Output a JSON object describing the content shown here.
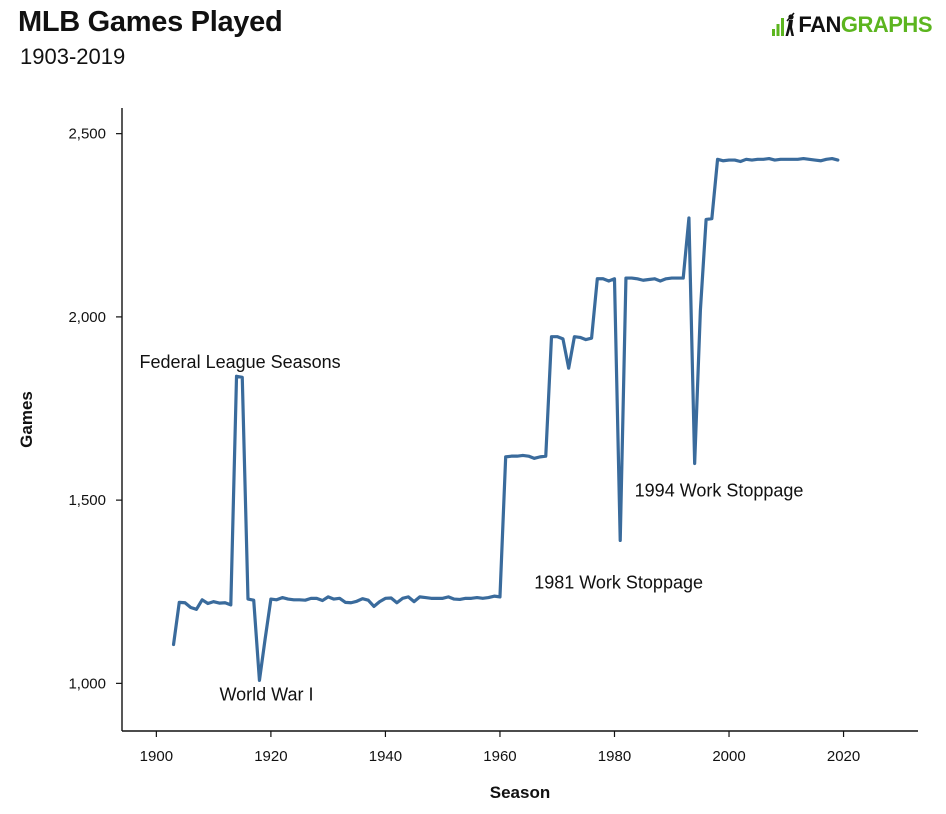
{
  "title": "MLB Games Played",
  "subtitle": "1903-2019",
  "logo": {
    "part1": "FAN",
    "part2": "GRAPHS",
    "brand_color": "#5cb51f"
  },
  "colors": {
    "line": "#3a6b9c",
    "axis": "#111111",
    "text": "#111111"
  },
  "chart_data": {
    "type": "line",
    "xlabel": "Season",
    "ylabel": "Games",
    "xlim": [
      1894,
      2033
    ],
    "ylim": [
      870,
      2570
    ],
    "x_ticks": [
      1900,
      1920,
      1940,
      1960,
      1980,
      2000,
      2020
    ],
    "x_tick_labels": [
      "1900",
      "1920",
      "1940",
      "1960",
      "1980",
      "2000",
      "2020"
    ],
    "y_ticks": [
      1000,
      1500,
      2000,
      2500
    ],
    "y_tick_labels": [
      "1,000",
      "1,500",
      "2,000",
      "2,500"
    ],
    "grid": false,
    "series": [
      {
        "x": [
          1903,
          1904,
          1905,
          1906,
          1907,
          1908,
          1909,
          1910,
          1911,
          1912,
          1913,
          1914,
          1915,
          1916,
          1917,
          1918,
          1919,
          1920,
          1921,
          1922,
          1923,
          1924,
          1925,
          1926,
          1927,
          1928,
          1929,
          1930,
          1931,
          1932,
          1933,
          1934,
          1935,
          1936,
          1937,
          1938,
          1939,
          1940,
          1941,
          1942,
          1943,
          1944,
          1945,
          1946,
          1947,
          1948,
          1949,
          1950,
          1951,
          1952,
          1953,
          1954,
          1955,
          1956,
          1957,
          1958,
          1959,
          1960,
          1961,
          1962,
          1963,
          1964,
          1965,
          1966,
          1967,
          1968,
          1969,
          1970,
          1971,
          1972,
          1973,
          1974,
          1975,
          1976,
          1977,
          1978,
          1979,
          1980,
          1981,
          1982,
          1983,
          1984,
          1985,
          1986,
          1987,
          1988,
          1989,
          1990,
          1991,
          1992,
          1993,
          1994,
          1995,
          1996,
          1997,
          1998,
          1999,
          2000,
          2001,
          2002,
          2003,
          2004,
          2005,
          2006,
          2007,
          2008,
          2009,
          2010,
          2011,
          2012,
          2013,
          2014,
          2015,
          2016,
          2017,
          2018,
          2019
        ],
        "values": [
          1106,
          1221,
          1220,
          1207,
          1202,
          1228,
          1218,
          1223,
          1219,
          1220,
          1214,
          1838,
          1835,
          1230,
          1227,
          1008,
          1122,
          1230,
          1228,
          1234,
          1230,
          1228,
          1228,
          1227,
          1232,
          1232,
          1226,
          1236,
          1230,
          1232,
          1221,
          1220,
          1224,
          1231,
          1227,
          1210,
          1223,
          1232,
          1233,
          1220,
          1232,
          1236,
          1223,
          1236,
          1234,
          1232,
          1232,
          1232,
          1236,
          1230,
          1229,
          1232,
          1232,
          1234,
          1232,
          1234,
          1238,
          1236,
          1618,
          1620,
          1620,
          1622,
          1620,
          1614,
          1618,
          1620,
          1946,
          1946,
          1940,
          1860,
          1946,
          1944,
          1938,
          1942,
          2104,
          2104,
          2098,
          2104,
          1390,
          2106,
          2106,
          2104,
          2100,
          2102,
          2104,
          2098,
          2104,
          2106,
          2106,
          2106,
          2270,
          1600,
          2018,
          2266,
          2268,
          2430,
          2426,
          2428,
          2428,
          2424,
          2430,
          2428,
          2430,
          2430,
          2432,
          2428,
          2430,
          2430,
          2430,
          2430,
          2432,
          2430,
          2428,
          2426,
          2430,
          2432,
          2428
        ]
      }
    ],
    "annotations": [
      {
        "text": "Federal League Seasons",
        "x": 1914,
        "y": 1860
      },
      {
        "text": "World War I",
        "x": 1918,
        "y": 980
      },
      {
        "text": "1981 Work Stoppage",
        "x": 1981,
        "y": 1330
      },
      {
        "text": "1994 Work Stoppage",
        "x": 1994,
        "y": 1545
      }
    ]
  }
}
